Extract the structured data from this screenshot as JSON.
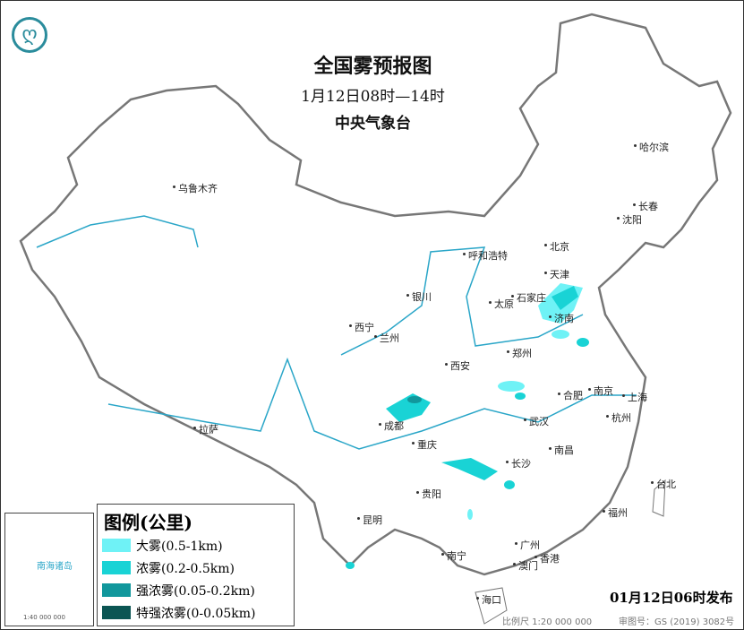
{
  "header": {
    "title": "全国雾预报图",
    "period": "1月12日08时—14时",
    "agency": "中央气象台"
  },
  "legend": {
    "title": "图例(公里)",
    "items": [
      {
        "label": "大雾(0.5-1km)",
        "color": "#6ff2f6"
      },
      {
        "label": "浓雾(0.2-0.5km)",
        "color": "#19d3d5"
      },
      {
        "label": "强浓雾(0.05-0.2km)",
        "color": "#11979c"
      },
      {
        "label": "特强浓雾(0-0.05km)",
        "color": "#0b5553"
      }
    ]
  },
  "cities": [
    "乌鲁木齐",
    "呼和浩特",
    "北京",
    "天津",
    "石家庄",
    "太原",
    "济南",
    "银川",
    "西宁",
    "兰州",
    "郑州",
    "西安",
    "合肥",
    "南京",
    "上海",
    "杭州",
    "武汉",
    "成都",
    "重庆",
    "长沙",
    "南昌",
    "拉萨",
    "贵阳",
    "昆明",
    "南宁",
    "广州",
    "香港",
    "澳门",
    "福州",
    "台北",
    "海口",
    "沈阳",
    "长春",
    "哈尔滨"
  ],
  "footer": {
    "issued": "01月12日06时发布",
    "scale": "比例尺 1:20 000 000",
    "review_no": "审图号：GS (2019) 3082号"
  },
  "inset": {
    "label": "南海诸岛",
    "scale": "1:40 000 000"
  },
  "logo_icon": "cma-logo-icon"
}
